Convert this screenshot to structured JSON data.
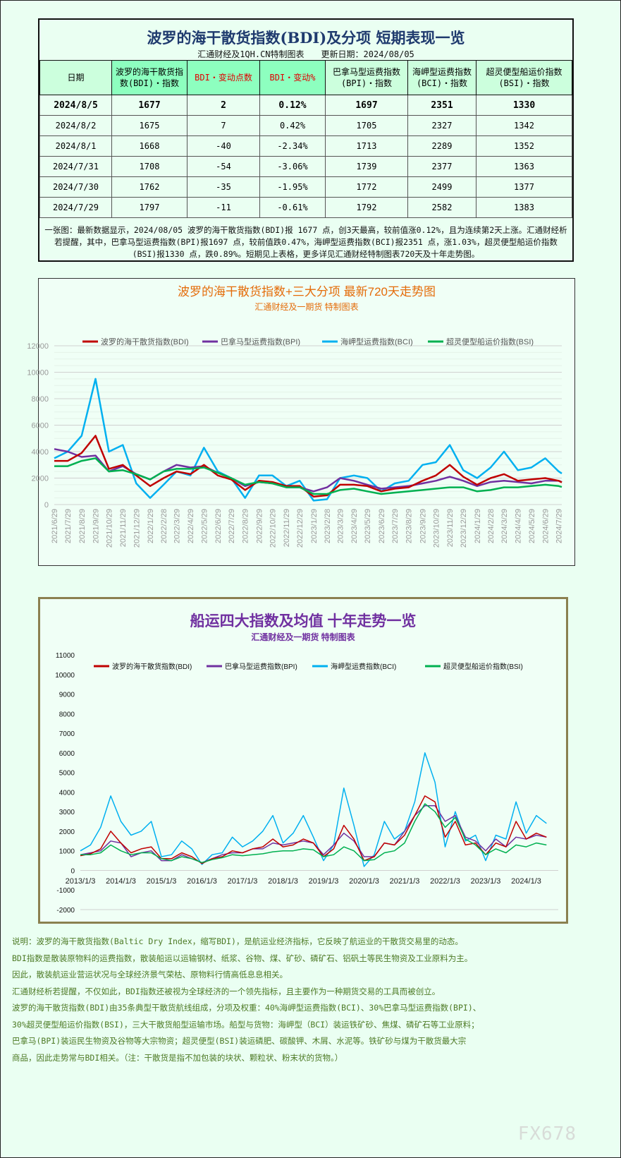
{
  "table": {
    "title": "波罗的海干散货指数(BDI)及分项 短期表现一览",
    "subtitle": "汇通财经及1QH.CN特制图表　　更新日期：2024/08/05",
    "headers": [
      "日期",
      "波罗的海干散货指数(BDI)・指数",
      "BDI・变动点数",
      "BDI・变动%",
      "巴拿马型运费指数(BPI)・指数",
      "海岬型运费指数(BCI)・指数",
      "超灵便型船运价指数(BSI)・指数"
    ],
    "rows": [
      [
        "2024/8/5",
        "1677",
        "2",
        "0.12%",
        "1697",
        "2351",
        "1330"
      ],
      [
        "2024/8/2",
        "1675",
        "7",
        "0.42%",
        "1705",
        "2327",
        "1342"
      ],
      [
        "2024/8/1",
        "1668",
        "-40",
        "-2.34%",
        "1713",
        "2289",
        "1352"
      ],
      [
        "2024/7/31",
        "1708",
        "-54",
        "-3.06%",
        "1739",
        "2377",
        "1363"
      ],
      [
        "2024/7/30",
        "1762",
        "-35",
        "-1.95%",
        "1772",
        "2499",
        "1377"
      ],
      [
        "2024/7/29",
        "1797",
        "-11",
        "-0.61%",
        "1792",
        "2582",
        "1383"
      ]
    ],
    "note": "一张图：最新数据显示，2024/08/05 波罗的海干散货指数(BDI)报 1677 点，创3天最高，较前值涨0.12%，且为连续第2天上涨。汇通财经析若提醒，其中，巴拿马型运费指数(BPI)报1697 点，较前值跌0.47%，海岬型运费指数(BCI)报2351 点，涨1.03%，超灵便型船运价指数(BSI)报1330 点，跌0.89%。短期见上表格，更多详见汇通财经特制图表720天及十年走势图。"
  },
  "chart_data": [
    {
      "type": "line",
      "title": "波罗的海干散货指数+三大分项  最新720天走势图",
      "subtitle": "汇通财经及一期货  特制图表",
      "title_color": "#e46c0a",
      "legend": "top",
      "ylim": [
        0,
        12000
      ],
      "yticks": [
        0,
        2000,
        4000,
        6000,
        8000,
        10000,
        12000
      ],
      "grid": true,
      "xticks": [
        "2021/6/29",
        "2021/7/29",
        "2021/8/29",
        "2021/9/29",
        "2021/10/29",
        "2021/11/29",
        "2021/12/29",
        "2022/1/29",
        "2022/2/28",
        "2022/3/29",
        "2022/4/29",
        "2022/5/29",
        "2022/6/29",
        "2022/7/29",
        "2022/8/29",
        "2022/9/29",
        "2022/10/29",
        "2022/11/29",
        "2022/12/29",
        "2023/1/29",
        "2023/2/28",
        "2023/3/29",
        "2023/4/29",
        "2023/5/29",
        "2023/6/29",
        "2023/7/29",
        "2023/8/29",
        "2023/9/29",
        "2023/10/29",
        "2023/11/29",
        "2023/12/29",
        "2024/1/29",
        "2024/2/28",
        "2024/3/29",
        "2024/4/29",
        "2024/5/29",
        "2024/6/29",
        "2024/7/29"
      ],
      "x": [
        "2021/6/29",
        "2021/7/29",
        "2021/8/29",
        "2021/9/29",
        "2021/10/29",
        "2021/11/29",
        "2021/12/29",
        "2022/1/29",
        "2022/2/28",
        "2022/3/29",
        "2022/4/29",
        "2022/5/29",
        "2022/6/29",
        "2022/7/29",
        "2022/8/29",
        "2022/9/29",
        "2022/10/29",
        "2022/11/29",
        "2022/12/29",
        "2023/1/29",
        "2023/2/28",
        "2023/3/29",
        "2023/4/29",
        "2023/5/29",
        "2023/6/29",
        "2023/7/29",
        "2023/8/29",
        "2023/9/29",
        "2023/10/29",
        "2023/11/29",
        "2023/12/29",
        "2024/1/29",
        "2024/2/28",
        "2024/3/29",
        "2024/4/29",
        "2024/5/29",
        "2024/6/29",
        "2024/7/29",
        "2024/8/5"
      ],
      "series": [
        {
          "name": "波罗的海干散货指数(BDI)",
          "color": "#c00000",
          "values": [
            3300,
            3300,
            3900,
            5200,
            2700,
            3000,
            2200,
            1400,
            2000,
            2500,
            2300,
            3000,
            2200,
            1900,
            1100,
            1800,
            1700,
            1400,
            1400,
            600,
            700,
            1500,
            1500,
            1400,
            1000,
            1200,
            1300,
            1800,
            2200,
            3000,
            2100,
            1500,
            2000,
            2300,
            1800,
            1900,
            2000,
            1800,
            1677
          ]
        },
        {
          "name": "巴拿马型运费指数(BPI)",
          "color": "#7030a0",
          "values": [
            4200,
            4000,
            3600,
            3700,
            2500,
            2900,
            2300,
            1900,
            2500,
            3000,
            2800,
            2900,
            2400,
            2000,
            1400,
            1700,
            1600,
            1300,
            1300,
            1000,
            1300,
            2000,
            1800,
            1500,
            1200,
            1300,
            1400,
            1600,
            1800,
            2100,
            1800,
            1400,
            1700,
            1800,
            1700,
            1600,
            1800,
            1800,
            1697
          ]
        },
        {
          "name": "海岬型运费指数(BCI)",
          "color": "#00b0f0",
          "values": [
            3500,
            4000,
            5200,
            9500,
            4000,
            4500,
            1600,
            500,
            1500,
            2500,
            2200,
            4300,
            2500,
            2000,
            500,
            2200,
            2200,
            1400,
            1800,
            300,
            400,
            2000,
            2200,
            2000,
            1000,
            1600,
            1800,
            3000,
            3200,
            4500,
            2600,
            2000,
            2800,
            4000,
            2600,
            2800,
            3500,
            2500,
            2351
          ]
        },
        {
          "name": "超灵便型船运价指数(BSI)",
          "color": "#00b050",
          "values": [
            2900,
            2900,
            3300,
            3500,
            2500,
            2600,
            2300,
            1900,
            2500,
            2700,
            2700,
            2800,
            2400,
            2000,
            1500,
            1700,
            1600,
            1300,
            1300,
            800,
            800,
            1100,
            1200,
            1000,
            800,
            900,
            1000,
            1100,
            1200,
            1300,
            1300,
            1000,
            1100,
            1300,
            1300,
            1400,
            1500,
            1400,
            1330
          ]
        }
      ]
    },
    {
      "type": "line",
      "title": "船运四大指数及均值 十年走势一览",
      "subtitle": "汇通财经及一期货 特制图表",
      "title_color": "#7030a0",
      "legend": "top",
      "ylim": [
        -2000,
        11000
      ],
      "yticks": [
        -2000,
        -1000,
        0,
        1000,
        2000,
        3000,
        4000,
        5000,
        6000,
        7000,
        8000,
        9000,
        10000,
        11000
      ],
      "grid": false,
      "xticks": [
        "2013/1/3",
        "2014/1/3",
        "2015/1/3",
        "2016/1/3",
        "2017/1/3",
        "2018/1/3",
        "2019/1/3",
        "2020/1/3",
        "2021/1/3",
        "2022/1/3",
        "2023/1/3",
        "2024/1/3"
      ],
      "x_start": "2013/1/3",
      "x_step": "quarter",
      "series": [
        {
          "name": "波罗的海干散货指数(BDI)",
          "color": "#c00000",
          "values": [
            750,
            850,
            1100,
            2000,
            1400,
            900,
            1100,
            1200,
            600,
            600,
            900,
            700,
            350,
            600,
            700,
            1000,
            900,
            1100,
            1200,
            1600,
            1200,
            1300,
            1600,
            1400,
            700,
            1100,
            2300,
            1600,
            500,
            700,
            1400,
            1300,
            1800,
            2800,
            3800,
            3500,
            1700,
            2500,
            1300,
            1400,
            800,
            1400,
            1200,
            2500,
            1600,
            1900,
            1700
          ]
        },
        {
          "name": "巴拿马型运费指数(BPI)",
          "color": "#7030a0",
          "values": [
            800,
            900,
            1000,
            1500,
            1400,
            700,
            900,
            1000,
            500,
            500,
            800,
            600,
            400,
            600,
            800,
            900,
            900,
            1100,
            1100,
            1400,
            1300,
            1400,
            1500,
            1400,
            800,
            1300,
            1900,
            1500,
            700,
            700,
            1400,
            1300,
            2000,
            2800,
            3300,
            3300,
            2500,
            2800,
            1700,
            1500,
            1000,
            1600,
            1200,
            1700,
            1600,
            1800,
            1700
          ]
        },
        {
          "name": "海岬型运费指数(BCI)",
          "color": "#00b0f0",
          "values": [
            1000,
            1300,
            2200,
            3800,
            2500,
            1800,
            2000,
            2500,
            700,
            800,
            1500,
            1100,
            300,
            800,
            900,
            1700,
            1200,
            1500,
            2000,
            2800,
            1400,
            1900,
            2800,
            1700,
            500,
            1300,
            4200,
            2300,
            200,
            800,
            2500,
            1600,
            2000,
            3500,
            6000,
            4500,
            1200,
            3000,
            1500,
            1800,
            500,
            1800,
            1600,
            3500,
            1900,
            2800,
            2400
          ]
        },
        {
          "name": "超灵便型船运价指数(BSI)",
          "color": "#00b050",
          "values": [
            800,
            800,
            900,
            1300,
            1000,
            800,
            900,
            900,
            600,
            500,
            700,
            600,
            400,
            550,
            650,
            800,
            750,
            800,
            850,
            950,
            1000,
            1000,
            1100,
            1050,
            700,
            800,
            1200,
            1000,
            500,
            550,
            900,
            1000,
            1400,
            2500,
            3400,
            3000,
            2200,
            2700,
            1600,
            1300,
            800,
            1100,
            900,
            1300,
            1200,
            1400,
            1300
          ]
        }
      ]
    }
  ],
  "description": [
    "说明：波罗的海干散货指数(Baltic Dry Index，缩写BDI)，是航运业经济指标，它反映了航运业的干散货交易里的动态。",
    "BDI指数是散装原物料的运费指数，散装船运以运输钢材、纸浆、谷物、煤、矿砂、磷矿石、铝矾土等民生物资及工业原料为主。",
    "因此，散装航运业营运状况与全球经济景气荣枯、原物料行情高低息息相关。",
    "汇通财经析若提醒，不仅如此，BDI指数还被视为全球经济的一个领先指标，且主要作为一种期货交易的工具而被创立。",
    "波罗的海干散货指数(BDI)由35条典型干散货航线组成，分项及权重：40%海岬型运费指数(BCI)、30%巴拿马型运费指数(BPI)、",
    "30%超灵便型船运价指数(BSI)，三大干散货船型运输市场。船型与货物：海岬型（BCI）装运铁矿砂、焦煤、磷矿石等工业原料；",
    "巴拿马(BPI)装运民生物资及谷物等大宗物资；超灵便型(BSI)装运磷肥、碳酸钾、木屑、水泥等。铁矿砂与煤为干散货最大宗",
    "商品，因此走势常与BDI相关。（注：干散货是指不加包装的块状、颗粒状、粉末状的货物。）"
  ],
  "watermark": "FX678"
}
